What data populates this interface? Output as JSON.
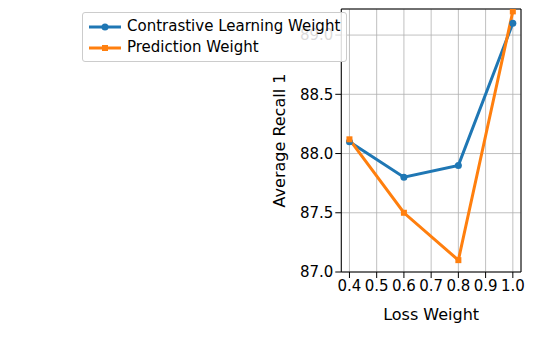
{
  "chart_data": {
    "type": "line",
    "x_label": "Loss Weight",
    "y_label": "Average Recall 1",
    "x": [
      0.4,
      0.6,
      0.8,
      1.0
    ],
    "series": [
      {
        "name": "Contrastive Learning Weight",
        "color": "#1f77b4",
        "marker": "circle",
        "values": [
          88.1,
          87.8,
          87.9,
          89.1
        ]
      },
      {
        "name": "Prediction Weight",
        "color": "#ff7f0e",
        "marker": "square",
        "values": [
          88.12,
          87.5,
          87.1,
          89.2
        ]
      }
    ],
    "xlim": [
      0.37,
      1.03
    ],
    "xticks": [
      0.4,
      0.5,
      0.6,
      0.7,
      0.8,
      0.9,
      {
        "value": 1.0,
        "label": "1.0"
      }
    ],
    "ylim": [
      87.0,
      89.22
    ],
    "yticks": [
      {
        "value": 87,
        "label": "87.0"
      },
      87.5,
      {
        "value": 88,
        "label": "88.0"
      },
      88.5,
      {
        "value": 89,
        "label": "89.0"
      }
    ],
    "grid": true,
    "legend": "upper left"
  }
}
